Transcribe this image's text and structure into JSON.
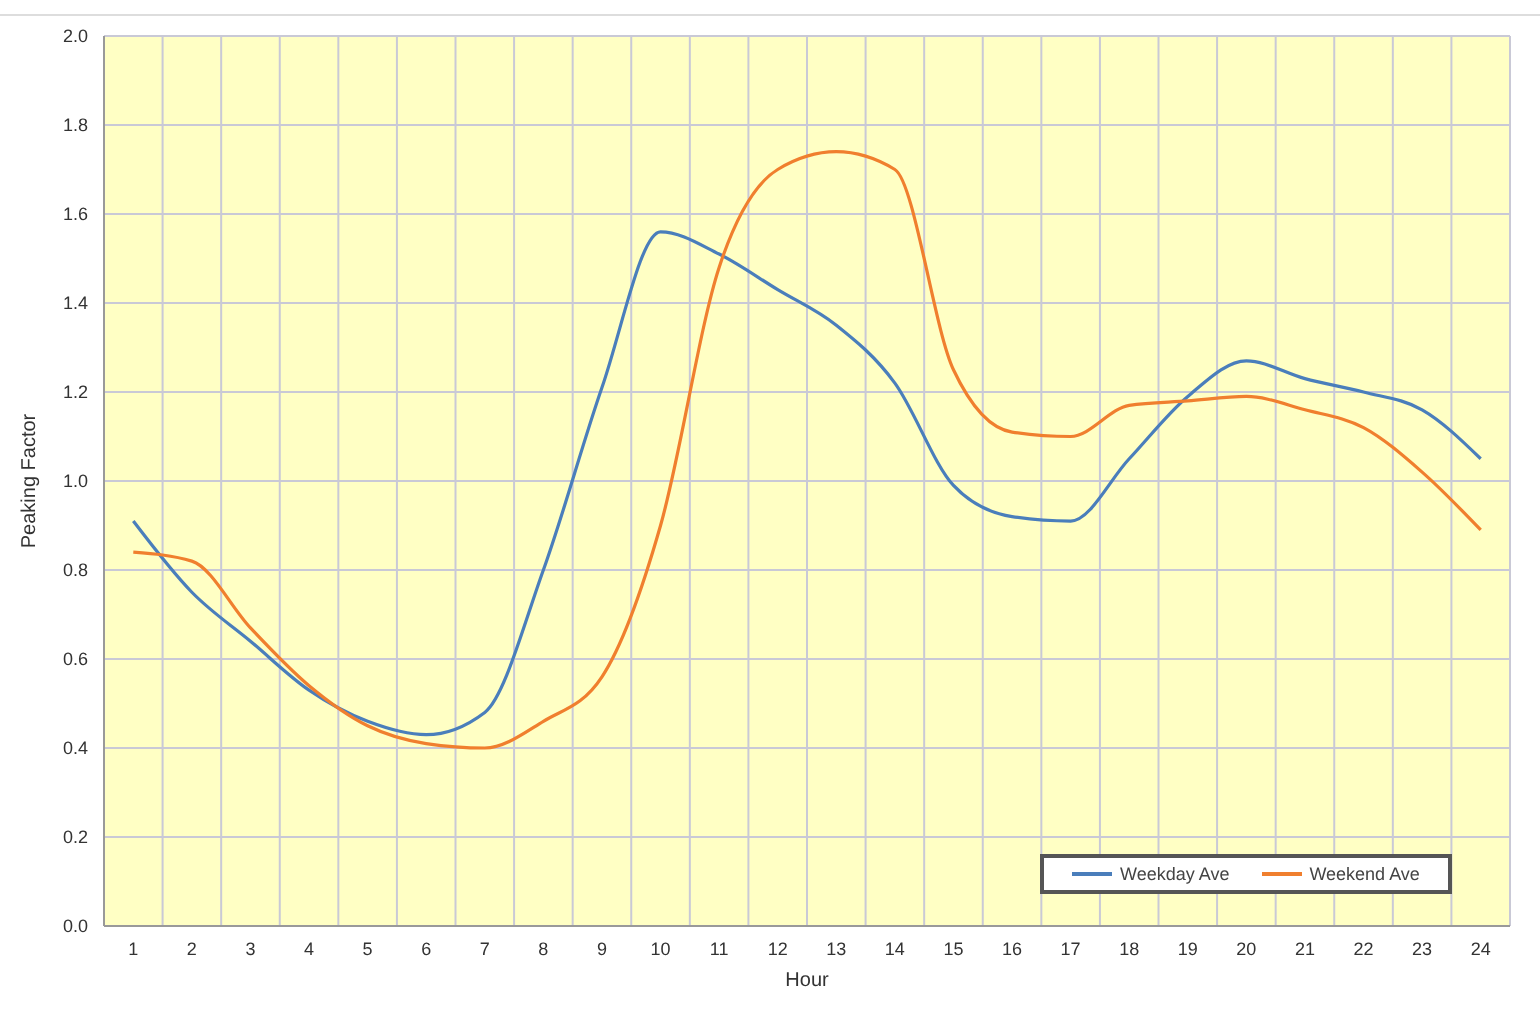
{
  "chart_data": {
    "type": "line",
    "xlabel": "Hour",
    "ylabel": "Peaking Factor",
    "x": [
      1,
      2,
      3,
      4,
      5,
      6,
      7,
      8,
      9,
      10,
      11,
      12,
      13,
      14,
      15,
      16,
      17,
      18,
      19,
      20,
      21,
      22,
      23,
      24
    ],
    "xlim": [
      0.5,
      24.5
    ],
    "xticks": [
      1,
      2,
      3,
      4,
      5,
      6,
      7,
      8,
      9,
      10,
      11,
      12,
      13,
      14,
      15,
      16,
      17,
      18,
      19,
      20,
      21,
      22,
      23,
      24
    ],
    "ylim": [
      0,
      2
    ],
    "yticks": [
      {
        "value": 0,
        "label": "0.0"
      },
      {
        "value": 0.2,
        "label": "0.2"
      },
      {
        "value": 0.4,
        "label": "0.4"
      },
      {
        "value": 0.6,
        "label": "0.6"
      },
      {
        "value": 0.8,
        "label": "0.8"
      },
      {
        "value": 1,
        "label": "1.0"
      },
      {
        "value": 1.2,
        "label": "1.2"
      },
      {
        "value": 1.4,
        "label": "1.4"
      },
      {
        "value": 1.6,
        "label": "1.6"
      },
      {
        "value": 1.8,
        "label": "1.8"
      },
      {
        "value": 2,
        "label": "2.0"
      }
    ],
    "grid": true,
    "legend": "bottom right",
    "marker": "none",
    "line_style": "solid",
    "series": [
      {
        "name": "Weekday Ave",
        "color": "#4a7ebb",
        "values": [
          0.91,
          0.75,
          0.64,
          0.53,
          0.46,
          0.43,
          0.48,
          0.8,
          1.21,
          1.56,
          1.51,
          1.43,
          1.35,
          1.22,
          0.99,
          0.92,
          0.91,
          1.05,
          1.19,
          1.27,
          1.23,
          1.2,
          1.16,
          1.05
        ]
      },
      {
        "name": "Weekend Ave",
        "color": "#f07f2e",
        "values": [
          0.84,
          0.82,
          0.67,
          0.54,
          0.45,
          0.41,
          0.4,
          0.46,
          0.56,
          0.9,
          1.48,
          1.7,
          1.74,
          1.7,
          1.25,
          1.11,
          1.1,
          1.17,
          1.18,
          1.19,
          1.16,
          1.12,
          1.02,
          0.89
        ]
      }
    ]
  }
}
